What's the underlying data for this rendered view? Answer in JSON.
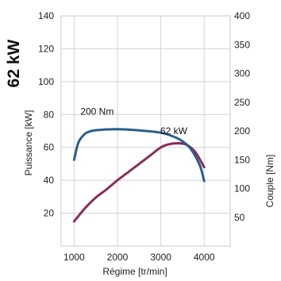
{
  "chart_data": {
    "type": "line",
    "title": "62 kW",
    "xlabel": "Régime [tr/min]",
    "ylabel_left": "Puissance [kW]",
    "ylabel_right": "Couple [Nm]",
    "xlim": [
      700,
      4600
    ],
    "x_ticks": [
      "1000",
      "2000",
      "3000",
      "4000"
    ],
    "x_tick_values": [
      1000,
      2000,
      3000,
      4000
    ],
    "ylim_left": [
      0,
      140
    ],
    "y_left_ticks": [
      "20",
      "40",
      "60",
      "80",
      "100",
      "120",
      "140"
    ],
    "y_left_tick_values": [
      20,
      40,
      60,
      80,
      100,
      120,
      140
    ],
    "ylim_right": [
      0,
      400
    ],
    "y_right_ticks": [
      "50",
      "100",
      "150",
      "200",
      "250",
      "300",
      "350",
      "400"
    ],
    "y_right_tick_values": [
      50,
      100,
      150,
      200,
      250,
      300,
      350,
      400
    ],
    "grid": true,
    "series": [
      {
        "name": "62 kW",
        "axis": "left",
        "color": "#8b2d5a",
        "x": [
          1000,
          1250,
          1500,
          1750,
          2000,
          2250,
          2500,
          2750,
          3000,
          3200,
          3400,
          3600,
          3800,
          4000
        ],
        "y": [
          15,
          23,
          29.5,
          34.5,
          40,
          45,
          50,
          55,
          60,
          62,
          62.5,
          61.5,
          57,
          48
        ]
      },
      {
        "name": "200 Nm",
        "axis": "right",
        "color": "#2a5e8c",
        "x": [
          1000,
          1100,
          1250,
          1400,
          1600,
          2000,
          2500,
          3000,
          3300,
          3500,
          3700,
          3900,
          4000
        ],
        "y": [
          150,
          180,
          195,
          200,
          202,
          203,
          201,
          197,
          190,
          182,
          168,
          140,
          113
        ]
      }
    ],
    "annotations": [
      {
        "text": "62 kW",
        "series": 0
      },
      {
        "text": "200 Nm",
        "series": 1
      }
    ]
  }
}
